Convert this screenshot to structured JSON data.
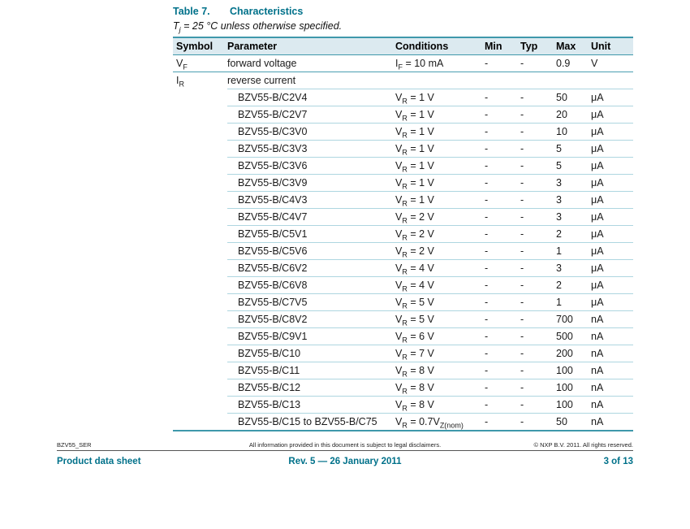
{
  "page": {
    "table_label": "Table 7.",
    "table_title": "Characteristics",
    "note_segments": [
      {
        "t": "T"
      },
      {
        "s": "j"
      },
      {
        "t": " = 25 °C unless otherwise specified."
      }
    ]
  },
  "colors": {
    "heading_teal": "#00718a",
    "table_border": "#3f98ab",
    "row_separator": "#aed6e0",
    "header_background": "#dceaf0"
  },
  "table": {
    "columns": [
      "Symbol",
      "Parameter",
      "Conditions",
      "Min",
      "Typ",
      "Max",
      "Unit"
    ],
    "rows": [
      {
        "kind": "main",
        "symbol": [
          {
            "t": "V"
          },
          {
            "s": "F"
          }
        ],
        "parameter": "forward voltage",
        "conditions": [
          {
            "t": "I"
          },
          {
            "s": "F"
          },
          {
            "t": " = 10 mA"
          }
        ],
        "min": "-",
        "typ": "-",
        "max": "0.9",
        "unit": "V"
      },
      {
        "kind": "group",
        "symbol": [
          {
            "t": "I"
          },
          {
            "s": "R"
          }
        ],
        "parameter": "reverse current",
        "conditions": [],
        "min": "",
        "typ": "",
        "max": "",
        "unit": ""
      },
      {
        "kind": "sub",
        "symbol": [],
        "parameter": "BZV55-B/C2V4",
        "conditions": [
          {
            "t": "V"
          },
          {
            "s": "R"
          },
          {
            "t": " = 1 V"
          }
        ],
        "min": "-",
        "typ": "-",
        "max": "50",
        "unit": "μA"
      },
      {
        "kind": "sub",
        "symbol": [],
        "parameter": "BZV55-B/C2V7",
        "conditions": [
          {
            "t": "V"
          },
          {
            "s": "R"
          },
          {
            "t": " = 1 V"
          }
        ],
        "min": "-",
        "typ": "-",
        "max": "20",
        "unit": "μA"
      },
      {
        "kind": "sub",
        "symbol": [],
        "parameter": "BZV55-B/C3V0",
        "conditions": [
          {
            "t": "V"
          },
          {
            "s": "R"
          },
          {
            "t": " = 1 V"
          }
        ],
        "min": "-",
        "typ": "-",
        "max": "10",
        "unit": "μA"
      },
      {
        "kind": "sub",
        "symbol": [],
        "parameter": "BZV55-B/C3V3",
        "conditions": [
          {
            "t": "V"
          },
          {
            "s": "R"
          },
          {
            "t": " = 1 V"
          }
        ],
        "min": "-",
        "typ": "-",
        "max": "5",
        "unit": "μA"
      },
      {
        "kind": "sub",
        "symbol": [],
        "parameter": "BZV55-B/C3V6",
        "conditions": [
          {
            "t": "V"
          },
          {
            "s": "R"
          },
          {
            "t": " = 1 V"
          }
        ],
        "min": "-",
        "typ": "-",
        "max": "5",
        "unit": "μA"
      },
      {
        "kind": "sub",
        "symbol": [],
        "parameter": "BZV55-B/C3V9",
        "conditions": [
          {
            "t": "V"
          },
          {
            "s": "R"
          },
          {
            "t": " = 1 V"
          }
        ],
        "min": "-",
        "typ": "-",
        "max": "3",
        "unit": "μA"
      },
      {
        "kind": "sub",
        "symbol": [],
        "parameter": "BZV55-B/C4V3",
        "conditions": [
          {
            "t": "V"
          },
          {
            "s": "R"
          },
          {
            "t": " = 1 V"
          }
        ],
        "min": "-",
        "typ": "-",
        "max": "3",
        "unit": "μA"
      },
      {
        "kind": "sub",
        "symbol": [],
        "parameter": "BZV55-B/C4V7",
        "conditions": [
          {
            "t": "V"
          },
          {
            "s": "R"
          },
          {
            "t": " = 2 V"
          }
        ],
        "min": "-",
        "typ": "-",
        "max": "3",
        "unit": "μA"
      },
      {
        "kind": "sub",
        "symbol": [],
        "parameter": "BZV55-B/C5V1",
        "conditions": [
          {
            "t": "V"
          },
          {
            "s": "R"
          },
          {
            "t": " = 2 V"
          }
        ],
        "min": "-",
        "typ": "-",
        "max": "2",
        "unit": "μA"
      },
      {
        "kind": "sub",
        "symbol": [],
        "parameter": "BZV55-B/C5V6",
        "conditions": [
          {
            "t": "V"
          },
          {
            "s": "R"
          },
          {
            "t": " = 2 V"
          }
        ],
        "min": "-",
        "typ": "-",
        "max": "1",
        "unit": "μA"
      },
      {
        "kind": "sub",
        "symbol": [],
        "parameter": "BZV55-B/C6V2",
        "conditions": [
          {
            "t": "V"
          },
          {
            "s": "R"
          },
          {
            "t": " = 4 V"
          }
        ],
        "min": "-",
        "typ": "-",
        "max": "3",
        "unit": "μA"
      },
      {
        "kind": "sub",
        "symbol": [],
        "parameter": "BZV55-B/C6V8",
        "conditions": [
          {
            "t": "V"
          },
          {
            "s": "R"
          },
          {
            "t": " = 4 V"
          }
        ],
        "min": "-",
        "typ": "-",
        "max": "2",
        "unit": "μA"
      },
      {
        "kind": "sub",
        "symbol": [],
        "parameter": "BZV55-B/C7V5",
        "conditions": [
          {
            "t": "V"
          },
          {
            "s": "R"
          },
          {
            "t": " = 5 V"
          }
        ],
        "min": "-",
        "typ": "-",
        "max": "1",
        "unit": "μA"
      },
      {
        "kind": "sub",
        "symbol": [],
        "parameter": "BZV55-B/C8V2",
        "conditions": [
          {
            "t": "V"
          },
          {
            "s": "R"
          },
          {
            "t": " = 5 V"
          }
        ],
        "min": "-",
        "typ": "-",
        "max": "700",
        "unit": "nA"
      },
      {
        "kind": "sub",
        "symbol": [],
        "parameter": "BZV55-B/C9V1",
        "conditions": [
          {
            "t": "V"
          },
          {
            "s": "R"
          },
          {
            "t": " = 6 V"
          }
        ],
        "min": "-",
        "typ": "-",
        "max": "500",
        "unit": "nA"
      },
      {
        "kind": "sub",
        "symbol": [],
        "parameter": "BZV55-B/C10",
        "conditions": [
          {
            "t": "V"
          },
          {
            "s": "R"
          },
          {
            "t": " = 7 V"
          }
        ],
        "min": "-",
        "typ": "-",
        "max": "200",
        "unit": "nA"
      },
      {
        "kind": "sub",
        "symbol": [],
        "parameter": "BZV55-B/C11",
        "conditions": [
          {
            "t": "V"
          },
          {
            "s": "R"
          },
          {
            "t": " = 8 V"
          }
        ],
        "min": "-",
        "typ": "-",
        "max": "100",
        "unit": "nA"
      },
      {
        "kind": "sub",
        "symbol": [],
        "parameter": "BZV55-B/C12",
        "conditions": [
          {
            "t": "V"
          },
          {
            "s": "R"
          },
          {
            "t": " = 8 V"
          }
        ],
        "min": "-",
        "typ": "-",
        "max": "100",
        "unit": "nA"
      },
      {
        "kind": "sub",
        "symbol": [],
        "parameter": "BZV55-B/C13",
        "conditions": [
          {
            "t": "V"
          },
          {
            "s": "R"
          },
          {
            "t": " = 8 V"
          }
        ],
        "min": "-",
        "typ": "-",
        "max": "100",
        "unit": "nA"
      },
      {
        "kind": "sub",
        "symbol": [],
        "parameter": "BZV55-B/C15 to BZV55-B/C75",
        "conditions": [
          {
            "t": "V"
          },
          {
            "s": "R"
          },
          {
            "t": " = 0.7V"
          },
          {
            "s": "Z(nom)"
          }
        ],
        "min": "-",
        "typ": "-",
        "max": "50",
        "unit": "nA"
      }
    ]
  },
  "footer": {
    "doc_id": "BZV55_SER",
    "disclaimer": "All information provided in this document is subject to legal disclaimers.",
    "copyright": "© NXP B.V. 2011. All rights reserved.",
    "doc_type": "Product data sheet",
    "revision": "Rev. 5 — 26 January 2011",
    "page_number": "3 of 13"
  }
}
